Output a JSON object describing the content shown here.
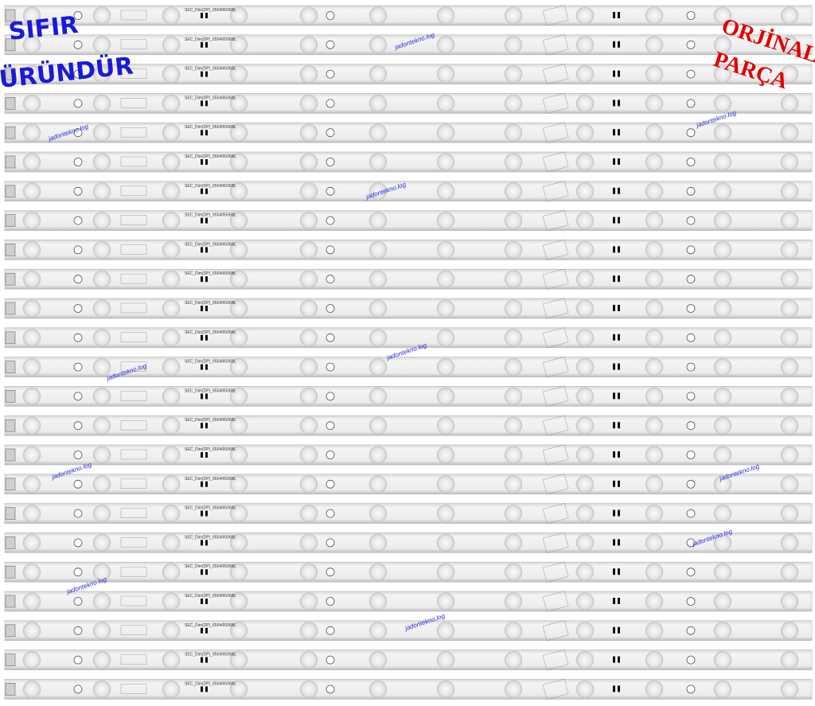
{
  "badges": {
    "left": [
      "SIFIR",
      "ÜRÜNDÜR"
    ],
    "right": [
      "ORJİNAL",
      "PARÇA"
    ]
  },
  "strip_label": "SEC_Dim(DP)_6504/6506BL",
  "watermarks": [
    "jadontekno.log",
    "jadontekno.log",
    "jadontekno.log",
    "jadontekno.log",
    "jadontekno.log",
    "jadontekno.log",
    "jadontekno.log",
    "jadontekno.log",
    "jadontekno.log",
    "jadontekno.log",
    "jadontekno.log"
  ]
}
